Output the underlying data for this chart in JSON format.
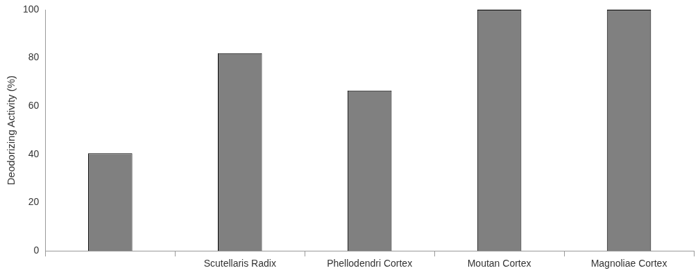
{
  "chart_data": {
    "type": "bar",
    "ylabel": "Deodorizing Activity (%)",
    "categories": [
      null,
      "Scutellaris Radix",
      "Phellodendri Cortex",
      "Moutan Cortex",
      "Magnoliae Cortex"
    ],
    "values": [
      40.5,
      82,
      66.5,
      100,
      100
    ],
    "color": "#808080",
    "ylim": [
      0,
      100
    ],
    "yticks": [
      0,
      20,
      40,
      60,
      80,
      100
    ],
    "grid": false
  }
}
